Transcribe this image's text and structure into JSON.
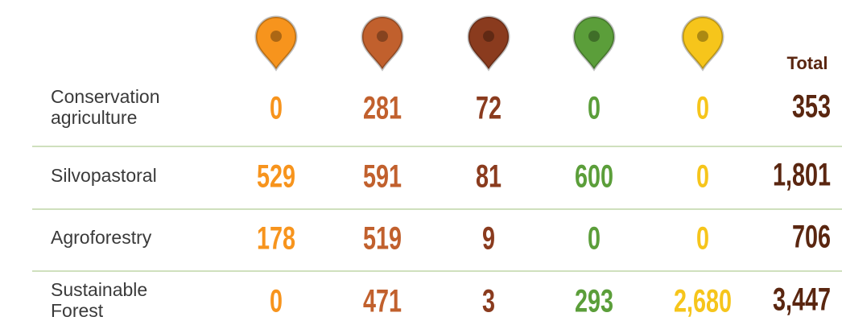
{
  "table": {
    "header": {
      "total": "Total"
    },
    "columns": [
      {
        "color": "#f7941d"
      },
      {
        "color": "#c1602d"
      },
      {
        "color": "#8a3b1e"
      },
      {
        "color": "#5b9e3a"
      },
      {
        "color": "#f6c51b"
      }
    ],
    "total_color": "#5a2610",
    "label_color": "#3a3a3a",
    "rule_color": "#cfe0bd",
    "rows": [
      {
        "label": [
          "Conservation",
          "agriculture"
        ],
        "values": [
          "0",
          "281",
          "72",
          "0",
          "0"
        ],
        "total": "353"
      },
      {
        "label": [
          "Silvopastoral"
        ],
        "values": [
          "529",
          "591",
          "81",
          "600",
          "0"
        ],
        "total": "1,801"
      },
      {
        "label": [
          "Agroforestry"
        ],
        "values": [
          "178",
          "519",
          "9",
          "0",
          "0"
        ],
        "total": "706"
      },
      {
        "label": [
          "Sustainable",
          "Forest"
        ],
        "values": [
          "0",
          "471",
          "3",
          "293",
          "2,680"
        ],
        "total": "3,447"
      }
    ]
  }
}
